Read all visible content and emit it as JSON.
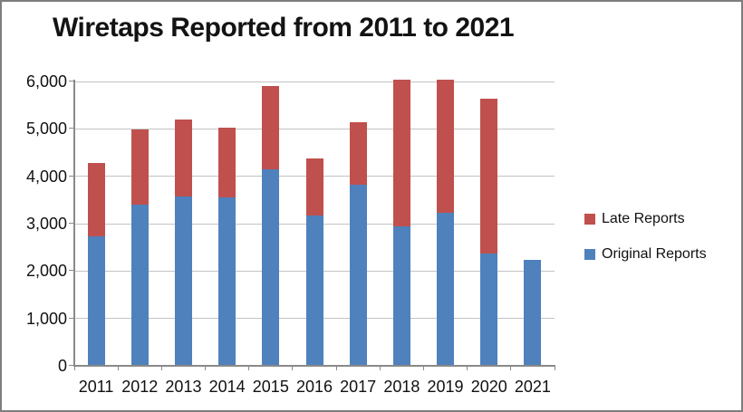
{
  "title": "Wiretaps Reported from 2011 to 2021",
  "legend": [
    {
      "label": "Late Reports",
      "color": "#C0504D"
    },
    {
      "label": "Original Reports",
      "color": "#4F81BD"
    }
  ],
  "chart_data": {
    "type": "bar",
    "stacked": true,
    "title": "Wiretaps Reported from 2011 to 2021",
    "categories": [
      "2011",
      "2012",
      "2013",
      "2014",
      "2015",
      "2016",
      "2017",
      "2018",
      "2019",
      "2020",
      "2021"
    ],
    "series": [
      {
        "name": "Original Reports",
        "color": "#4F81BD",
        "values": [
          2732,
          3395,
          3576,
          3554,
          4148,
          3168,
          3813,
          2937,
          3225,
          2377,
          2245
        ]
      },
      {
        "name": "Late Reports",
        "color": "#C0504D",
        "values": [
          1540,
          1600,
          1620,
          1480,
          1750,
          1200,
          1320,
          3100,
          2815,
          3260,
          0
        ]
      }
    ],
    "ylim": [
      0,
      6000
    ],
    "y_ticks": [
      {
        "value": 0,
        "label": "0"
      },
      {
        "value": 1000,
        "label": "1,000"
      },
      {
        "value": 2000,
        "label": "2,000"
      },
      {
        "value": 3000,
        "label": "3,000"
      },
      {
        "value": 4000,
        "label": "4,000"
      },
      {
        "value": 5000,
        "label": "5,000"
      },
      {
        "value": 6000,
        "label": "6,000"
      }
    ],
    "grid": true,
    "legend_position": "right",
    "xlabel": "",
    "ylabel": ""
  }
}
